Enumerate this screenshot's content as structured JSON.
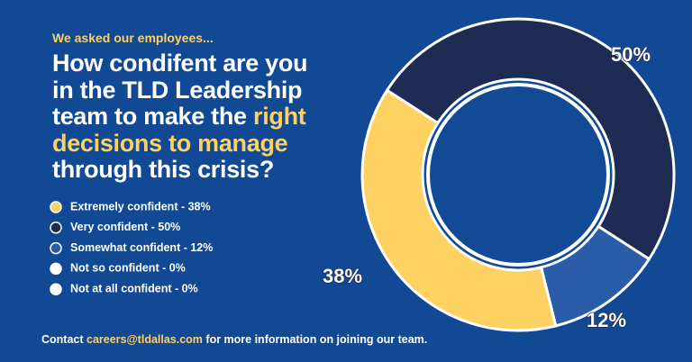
{
  "chart_data": {
    "type": "donut",
    "kicker": "We asked our employees...",
    "title": [
      "How condifent are you",
      "in the TLD Leadership",
      "team to make the ",
      "right",
      "decisions to manage",
      "through this crisis?"
    ],
    "categories": [
      "Extremely confident - 38%",
      "Very confident - 50%",
      "Somewhat confident - 12%",
      "Not so confident - 0%",
      "Not at all confident - 0%"
    ],
    "values": [
      38,
      50,
      12,
      0,
      0
    ],
    "value_labels": [
      "38%",
      "50%",
      "12%",
      null,
      null
    ],
    "colors": [
      "#fdd162",
      "#1e2b52",
      "#2b5ca8",
      "#ffffff",
      "#ffffff"
    ],
    "footer": [
      "Contact ",
      "careers@tldallas.com",
      " for more information on joining our team."
    ]
  }
}
